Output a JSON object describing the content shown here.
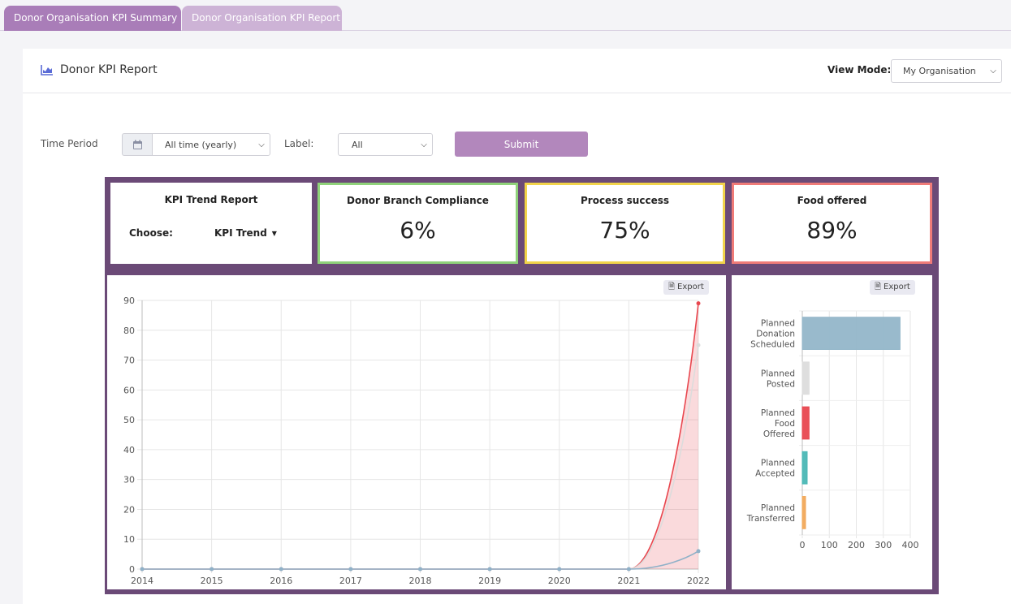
{
  "tabs": [
    {
      "label": "Donor Organisation KPI Summary"
    },
    {
      "label": "Donor Organisation KPI Report"
    }
  ],
  "header": {
    "title": "Donor KPI Report",
    "icon": "area-chart-icon",
    "view_mode_label": "View Mode:",
    "view_mode_value": "My Organisation"
  },
  "filters": {
    "time_period_label": "Time Period",
    "time_period_value": "All time (yearly)",
    "label_label": "Label:",
    "label_value": "All",
    "submit_label": "Submit"
  },
  "trend_card": {
    "title": "KPI Trend Report",
    "choose_label": "Choose:",
    "choose_value": "KPI Trend"
  },
  "kpis": [
    {
      "title": "Donor Branch Compliance",
      "value": "6%",
      "border": "#8fd27a"
    },
    {
      "title": "Process success",
      "value": "75%",
      "border": "#f1d34a"
    },
    {
      "title": "Food offered",
      "value": "89%",
      "border": "#ef7b78"
    }
  ],
  "export_label": "Export",
  "colors": {
    "accent": "#b287bc",
    "dashboard_bg": "#6b4a77",
    "tab_active": "#a97db8",
    "tab_inactive": "#cdb3d6"
  },
  "chart_data": [
    {
      "type": "area",
      "x": [
        "2014",
        "2015",
        "2016",
        "2017",
        "2018",
        "2019",
        "2020",
        "2021",
        "2022"
      ],
      "ylim": [
        0,
        90
      ],
      "yticks": [
        "0",
        "10",
        "20",
        "30",
        "40",
        "50",
        "60",
        "70",
        "80",
        "90"
      ],
      "grid": true,
      "series": [
        {
          "values": [
            0,
            0,
            0,
            0,
            0,
            0,
            0,
            0,
            89
          ],
          "color": "#e8474f",
          "fill": true
        },
        {
          "values": [
            0,
            0,
            0,
            0,
            0,
            0,
            0,
            0,
            75
          ],
          "color": "#dcdcdc",
          "fill": false
        },
        {
          "values": [
            0,
            0,
            0,
            0,
            0,
            0,
            0,
            0,
            6
          ],
          "color": "#8fb1c8",
          "fill": false
        }
      ]
    },
    {
      "type": "bar",
      "orientation": "horizontal",
      "categories": [
        [
          "Planned",
          "Donation",
          "Scheduled"
        ],
        [
          "Planned",
          "Posted"
        ],
        [
          "Planned",
          "Food",
          "Offered"
        ],
        [
          "Planned",
          "Accepted"
        ],
        [
          "Planned",
          "Transferred"
        ]
      ],
      "values": [
        362,
        25,
        25,
        18,
        12
      ],
      "colors": [
        "#94b6c9",
        "#dcdcdc",
        "#e8474f",
        "#4ab7b5",
        "#f1a95a"
      ],
      "xlim": [
        0,
        400
      ],
      "xticks": [
        "0",
        "100",
        "200",
        "300",
        "400"
      ],
      "grid": true
    }
  ]
}
